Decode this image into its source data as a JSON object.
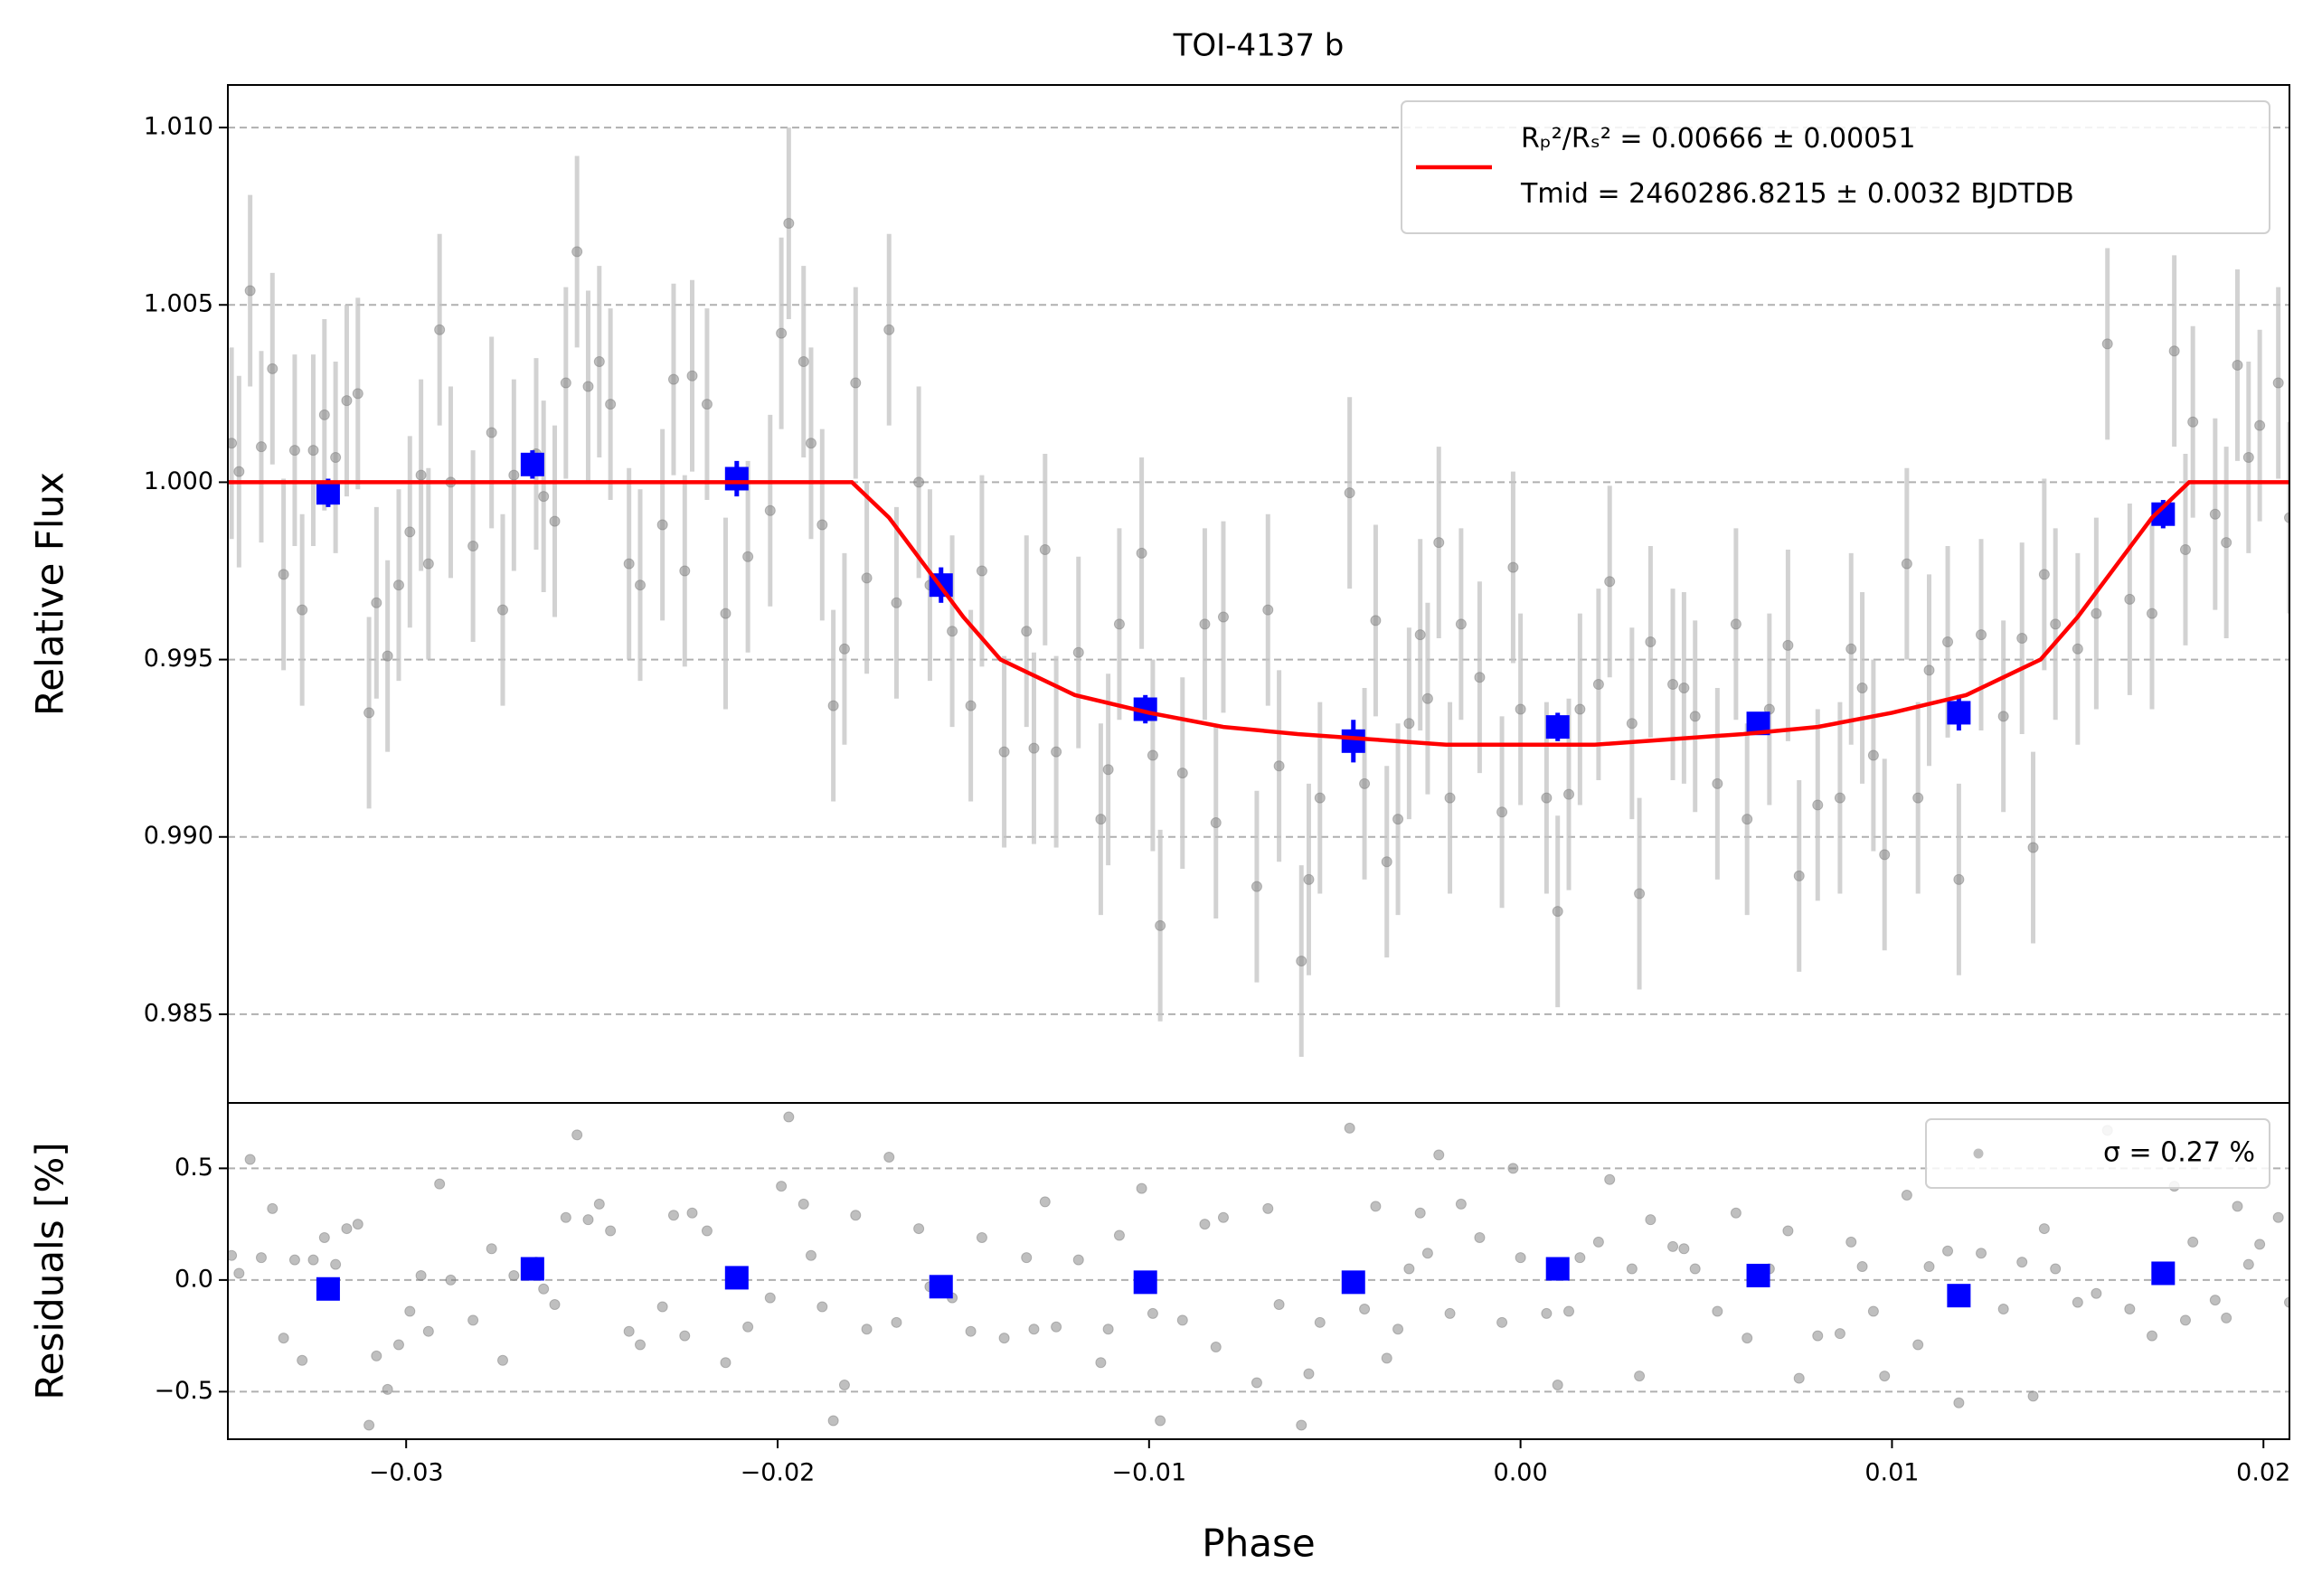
{
  "chart_data": [
    {
      "type": "scatter",
      "title": "TOI-4137 b",
      "ylabel": "Relative Flux",
      "xlim": [
        -0.0348,
        0.0207
      ],
      "ylim": [
        0.9825,
        1.0112
      ],
      "yticks": [
        0.985,
        {
          "value": 0.99,
          "label": "0.990"
        },
        0.995,
        {
          "value": 1,
          "label": "1.000"
        },
        1.005,
        {
          "value": 1.01,
          "label": "1.010"
        }
      ],
      "grid": "y",
      "legend": "upper right",
      "series": [
        {
          "type": "scatter",
          "marker": "circle",
          "color": "#808080",
          "alpha": 0.5,
          "error_color": "#c4c4c4",
          "error": 0.0027,
          "x": [
            -0.0347,
            -0.0345,
            -0.0342,
            -0.0339,
            -0.0336,
            -0.0333,
            -0.033,
            -0.0328,
            -0.0325,
            -0.0322,
            -0.0319,
            -0.0316,
            -0.0313,
            -0.031,
            -0.0308,
            -0.0305,
            -0.0302,
            -0.0299,
            -0.0296,
            -0.0294,
            -0.0291,
            -0.0288,
            -0.0282,
            -0.0277,
            -0.0274,
            -0.0271,
            -0.0265,
            -0.0263,
            -0.026,
            -0.0257,
            -0.0254,
            -0.0251,
            -0.0248,
            -0.0245,
            -0.024,
            -0.0237,
            -0.0231,
            -0.0228,
            -0.0225,
            -0.0223,
            -0.0219,
            -0.0214,
            -0.0208,
            -0.0202,
            -0.0199,
            -0.0197,
            -0.0193,
            -0.0191,
            -0.0188,
            -0.0185,
            -0.0182,
            -0.0179,
            -0.0176,
            -0.017,
            -0.0168,
            -0.0162,
            -0.0159,
            -0.0153,
            -0.0148,
            -0.0145,
            -0.0139,
            -0.0133,
            -0.0131,
            -0.0128,
            -0.0125,
            -0.0119,
            -0.0113,
            -0.0111,
            -0.0108,
            -0.0102,
            -0.0099,
            -0.0097,
            -0.0091,
            -0.0085,
            -0.0082,
            -0.008,
            -0.0071,
            -0.0068,
            -0.0065,
            -0.0059,
            -0.0057,
            -0.0054,
            -0.0046,
            -0.0042,
            -0.0039,
            -0.0036,
            -0.0033,
            -0.003,
            -0.0027,
            -0.0025,
            -0.0022,
            -0.0019,
            -0.0016,
            -0.0011,
            -0.0005,
            -0.0002,
            0,
            0.0007,
            0.001,
            0.0013,
            0.0016,
            0.0021,
            0.0024,
            0.003,
            0.0032,
            0.0035,
            0.0041,
            0.0044,
            0.0047,
            0.0053,
            0.0058,
            0.0061,
            0.0067,
            0.0072,
            0.0075,
            0.008,
            0.0086,
            0.0089,
            0.0092,
            0.0095,
            0.0098,
            0.0104,
            0.0107,
            0.011,
            0.0115,
            0.0118,
            0.0124,
            0.013,
            0.0135,
            0.0138,
            0.0141,
            0.0144,
            0.015,
            0.0155,
            0.0158,
            0.0164,
            0.017,
            0.0176,
            0.0179,
            0.0181,
            0.0187,
            0.019,
            0.0193,
            0.0196,
            0.0199,
            0.0204,
            0.0207
          ],
          "values": [
            1.0011,
            1.0003,
            1.0054,
            1.001,
            1.0032,
            0.9974,
            1.0009,
            0.9964,
            1.0009,
            1.0019,
            1.0007,
            1.0023,
            1.0025,
            0.9935,
            0.9966,
            0.9951,
            0.9971,
            0.9986,
            1.0002,
            0.9977,
            1.0043,
            1.0,
            0.9982,
            1.0014,
            0.9964,
            1.0002,
            1.0008,
            0.9996,
            0.9989,
            1.0028,
            1.0065,
            1.0027,
            1.0034,
            1.0022,
            0.9977,
            0.9971,
            0.9988,
            1.0029,
            0.9975,
            1.003,
            1.0022,
            0.9963,
            0.9979,
            0.9992,
            1.0042,
            1.0073,
            1.0034,
            1.0011,
            0.9988,
            0.9937,
            0.9953,
            1.0028,
            0.9973,
            1.0043,
            0.9966,
            1.0,
            0.9971,
            0.9958,
            0.9937,
            0.9975,
            0.9924,
            0.9958,
            0.9925,
            0.9981,
            0.9924,
            0.9952,
            0.9905,
            0.9919,
            0.996,
            0.998,
            0.9923,
            0.9875,
            0.9918,
            0.996,
            0.9904,
            0.9962,
            0.9886,
            0.9964,
            0.992,
            0.9865,
            0.9888,
            0.9911,
            0.9997,
            0.9915,
            0.9961,
            0.9893,
            0.9905,
            0.9932,
            0.9957,
            0.9939,
            0.9983,
            0.9911,
            0.996,
            0.9945,
            0.9907,
            0.9976,
            0.9936,
            0.9911,
            0.9879,
            0.9912,
            0.9936,
            0.9943,
            0.9972,
            0.9932,
            0.9884,
            0.9955,
            0.9943,
            0.9942,
            0.9934,
            0.9915,
            0.996,
            0.9905,
            0.9936,
            0.9954,
            0.9889,
            0.9909,
            0.9911,
            0.9953,
            0.9942,
            0.9923,
            0.9895,
            0.9977,
            0.9911,
            0.9947,
            0.9955,
            0.9888,
            0.9957,
            0.9934,
            0.9956,
            0.9897,
            0.9974,
            0.996,
            0.9953,
            0.9963,
            1.0039,
            0.9967,
            0.9963,
            1.0037,
            0.9981,
            1.0017,
            0.9991,
            0.9983,
            1.0033,
            1.0007,
            1.0016,
            1.0028,
            0.999
          ]
        },
        {
          "type": "scatter",
          "marker": "square",
          "color": "#0000ff",
          "alpha": 1,
          "error_color": "#0000ff",
          "x": [
            -0.0321,
            -0.0266,
            -0.0211,
            -0.0156,
            -0.0101,
            -0.0045,
            0.001,
            0.0064,
            0.0118,
            0.0173
          ],
          "values": [
            0.9997,
            1.0005,
            1.0001,
            0.9971,
            0.9936,
            0.9927,
            0.9931,
            0.9932,
            0.9935,
            0.9991
          ],
          "errors": [
            0.0004,
            0.0004,
            0.0005,
            0.0005,
            0.0004,
            0.0006,
            0.0004,
            0.0003,
            0.0005,
            0.0004
          ]
        },
        {
          "type": "line",
          "color": "#ff0000",
          "name": [
            "Rₚ²/Rₛ² = 0.00666 ± 0.00051",
            "Tmid = 2460286.8215 ± 0.0032 BJDTDB"
          ],
          "x": [
            -0.0348,
            -0.018,
            -0.017,
            -0.016,
            -0.015,
            -0.014,
            -0.012,
            -0.01,
            -0.008,
            -0.006,
            -0.004,
            -0.002,
            0,
            0.002,
            0.004,
            0.006,
            0.008,
            0.01,
            0.012,
            0.014,
            0.015,
            0.016,
            0.017,
            0.018,
            0.0207
          ],
          "values": [
            1,
            1,
            0.999,
            0.9976,
            0.9962,
            0.995,
            0.994,
            0.9935,
            0.9931,
            0.9929,
            0.99275,
            0.9926,
            0.9926,
            0.9926,
            0.99275,
            0.9929,
            0.9931,
            0.9935,
            0.994,
            0.995,
            0.9962,
            0.9976,
            0.999,
            1,
            1
          ]
        }
      ]
    },
    {
      "type": "scatter",
      "ylabel": "Residuals [%]",
      "xlabel": "Phase",
      "xlim": [
        -0.0348,
        0.0207
      ],
      "ylim": [
        -0.713,
        0.793
      ],
      "xticks": [
        {
          "value": -0.03,
          "label": "−0.03"
        },
        {
          "value": -0.02,
          "label": "−0.02"
        },
        {
          "value": -0.01,
          "label": "−0.01"
        },
        {
          "value": 0,
          "label": "0.00"
        },
        0.01,
        0.02
      ],
      "yticks": [
        {
          "value": -0.5,
          "label": "−0.5"
        },
        {
          "value": 0,
          "label": "0.0"
        },
        0.5
      ],
      "grid": "y",
      "legend": "upper right",
      "series": [
        {
          "type": "scatter",
          "marker": "circle",
          "color": "#808080",
          "alpha": 0.5,
          "name": [
            "σ = 0.27 %"
          ],
          "x": [
            -0.0347,
            -0.0345,
            -0.0342,
            -0.0339,
            -0.0336,
            -0.0333,
            -0.033,
            -0.0328,
            -0.0325,
            -0.0322,
            -0.0319,
            -0.0316,
            -0.0313,
            -0.031,
            -0.0308,
            -0.0305,
            -0.0302,
            -0.0299,
            -0.0296,
            -0.0294,
            -0.0291,
            -0.0288,
            -0.0282,
            -0.0277,
            -0.0274,
            -0.0271,
            -0.0265,
            -0.0263,
            -0.026,
            -0.0257,
            -0.0254,
            -0.0251,
            -0.0248,
            -0.0245,
            -0.024,
            -0.0237,
            -0.0231,
            -0.0228,
            -0.0225,
            -0.0223,
            -0.0219,
            -0.0214,
            -0.0208,
            -0.0202,
            -0.0199,
            -0.0197,
            -0.0193,
            -0.0191,
            -0.0188,
            -0.0185,
            -0.0182,
            -0.0179,
            -0.0176,
            -0.017,
            -0.0168,
            -0.0162,
            -0.0159,
            -0.0153,
            -0.0148,
            -0.0145,
            -0.0139,
            -0.0133,
            -0.0131,
            -0.0128,
            -0.0125,
            -0.0119,
            -0.0113,
            -0.0111,
            -0.0108,
            -0.0102,
            -0.0099,
            -0.0097,
            -0.0091,
            -0.0085,
            -0.0082,
            -0.008,
            -0.0071,
            -0.0068,
            -0.0065,
            -0.0059,
            -0.0057,
            -0.0054,
            -0.0046,
            -0.0042,
            -0.0039,
            -0.0036,
            -0.0033,
            -0.003,
            -0.0027,
            -0.0025,
            -0.0022,
            -0.0019,
            -0.0016,
            -0.0011,
            -0.0005,
            -0.0002,
            0,
            0.0007,
            0.001,
            0.0013,
            0.0016,
            0.0021,
            0.0024,
            0.003,
            0.0032,
            0.0035,
            0.0041,
            0.0044,
            0.0047,
            0.0053,
            0.0058,
            0.0061,
            0.0067,
            0.0072,
            0.0075,
            0.008,
            0.0086,
            0.0089,
            0.0092,
            0.0095,
            0.0098,
            0.0104,
            0.0107,
            0.011,
            0.0115,
            0.0118,
            0.0124,
            0.013,
            0.0135,
            0.0138,
            0.0141,
            0.0144,
            0.015,
            0.0155,
            0.0158,
            0.0164,
            0.017,
            0.0176,
            0.0179,
            0.0181,
            0.0187,
            0.019,
            0.0193,
            0.0196,
            0.0199,
            0.0204,
            0.0207
          ],
          "values": [
            0.11,
            0.03,
            0.54,
            0.1,
            0.32,
            -0.26,
            0.09,
            -0.36,
            0.09,
            0.19,
            0.07,
            0.23,
            0.25,
            -0.65,
            -0.34,
            -0.49,
            -0.29,
            -0.14,
            0.02,
            -0.23,
            0.43,
            0,
            -0.18,
            0.14,
            -0.36,
            0.02,
            0.08,
            -0.04,
            -0.11,
            0.28,
            0.65,
            0.27,
            0.34,
            0.22,
            -0.23,
            -0.29,
            -0.12,
            0.29,
            -0.25,
            0.3,
            0.22,
            -0.37,
            -0.21,
            -0.08,
            0.42,
            0.73,
            0.34,
            0.11,
            -0.12,
            -0.63,
            -0.47,
            0.29,
            -0.22,
            0.55,
            -0.19,
            0.23,
            -0.03,
            -0.08,
            -0.23,
            0.19,
            -0.26,
            0.1,
            -0.22,
            0.35,
            -0.21,
            0.09,
            -0.37,
            -0.22,
            0.2,
            0.41,
            -0.15,
            -0.63,
            -0.18,
            0.25,
            -0.3,
            0.28,
            -0.46,
            0.32,
            -0.11,
            -0.65,
            -0.42,
            -0.19,
            0.68,
            -0.13,
            0.33,
            -0.35,
            -0.22,
            0.05,
            0.3,
            0.12,
            0.56,
            -0.15,
            0.34,
            0.19,
            -0.19,
            0.5,
            0.1,
            -0.15,
            -0.47,
            -0.14,
            0.1,
            0.17,
            0.45,
            0.05,
            -0.43,
            0.27,
            0.15,
            0.14,
            0.05,
            -0.14,
            0.3,
            -0.26,
            0.05,
            0.22,
            -0.44,
            -0.25,
            -0.24,
            0.17,
            0.06,
            -0.14,
            -0.43,
            0.38,
            -0.29,
            0.06,
            0.13,
            -0.55,
            0.12,
            -0.13,
            0.08,
            -0.52,
            0.23,
            0.05,
            -0.1,
            -0.06,
            0.67,
            -0.13,
            -0.25,
            0.42,
            -0.18,
            0.17,
            -0.09,
            -0.17,
            0.33,
            0.07,
            0.16,
            0.28,
            -0.1
          ]
        },
        {
          "type": "scatter",
          "marker": "square",
          "color": "#0000ff",
          "alpha": 1,
          "x": [
            -0.0321,
            -0.0266,
            -0.0211,
            -0.0156,
            -0.0101,
            -0.0045,
            0.001,
            0.0064,
            0.0118,
            0.0173
          ],
          "values": [
            -0.04,
            0.05,
            0.01,
            -0.03,
            -0.01,
            -0.01,
            0.05,
            0.02,
            -0.07,
            0.03
          ]
        }
      ]
    }
  ]
}
